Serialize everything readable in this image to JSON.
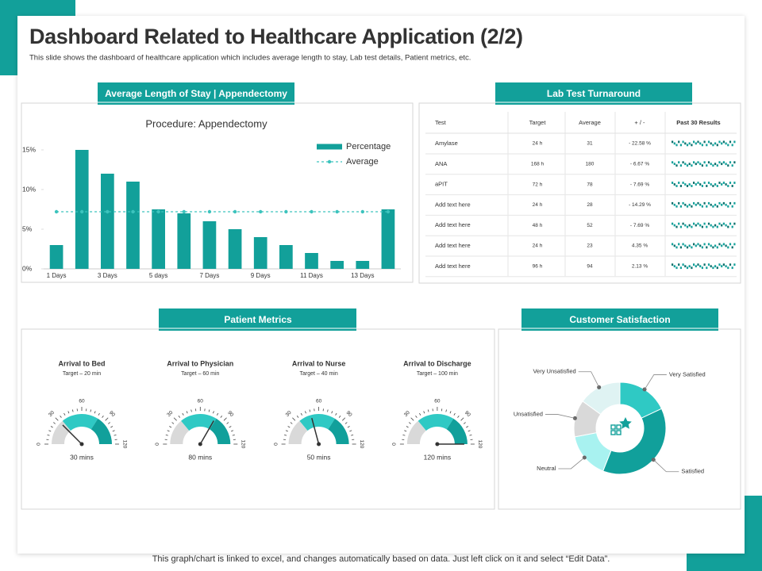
{
  "header": {
    "title": "Dashboard Related to Healthcare Application (2/2)",
    "subtitle": "This slide shows the dashboard of healthcare application which includes average length to stay, Lab test details, Patient metrics, etc."
  },
  "banners": [
    "Average Length of Stay | Appendectomy",
    "Lab Test Turnaround",
    "Patient Metrics",
    "Customer Satisfaction"
  ],
  "chart_data": [
    {
      "type": "bar",
      "title": "Procedure: Appendectomy",
      "categories": [
        "1 Days",
        null,
        "3 Days",
        null,
        "5 days",
        null,
        "7 Days",
        null,
        "9 Days",
        null,
        "11 Days",
        null,
        "13 Days",
        null
      ],
      "series": [
        {
          "name": "Percentage",
          "type": "bar",
          "color": "#12a09a",
          "values": [
            3,
            15,
            12,
            11,
            7.5,
            7,
            6,
            5,
            4,
            3,
            2,
            1,
            1,
            7.5
          ]
        },
        {
          "name": "Average",
          "type": "line",
          "color": "#3cc3bd",
          "values": [
            7.2,
            7.2,
            7.2,
            7.2,
            7.2,
            7.2,
            7.2,
            7.2,
            7.2,
            7.2,
            7.2,
            7.2,
            7.2,
            7.2
          ]
        }
      ],
      "ylim": [
        0,
        16
      ],
      "yticks": [
        {
          "value": 0,
          "label": "0%"
        },
        {
          "value": 5,
          "label": "5%"
        },
        {
          "value": 10,
          "label": "10%"
        },
        {
          "value": 15,
          "label": "15%"
        }
      ],
      "legend": "upper right"
    },
    {
      "type": "pie",
      "donut": true,
      "categories": [
        "Very Satisfied",
        "Satisfied",
        "Neutral",
        "Unsatisfied",
        "Very Unsatisfied"
      ],
      "values": [
        18,
        38,
        16,
        13,
        15
      ],
      "colors": [
        "#2fc9c4",
        "#11a09b",
        "#a8f2f0",
        "#d9d9d9",
        "#dff3f3"
      ]
    }
  ],
  "lab_table": {
    "header": [
      "Test",
      "Target",
      "Average",
      "+ / -",
      "Past 30 Results"
    ],
    "rows": [
      [
        "Amylase",
        "24 h",
        "31",
        "- 22.58 %"
      ],
      [
        "ANA",
        "168 h",
        "180",
        "- 6.67 %"
      ],
      [
        "aPIT",
        "72 h",
        "78",
        "- 7.69 %"
      ],
      [
        "Add text here",
        "24 h",
        "28",
        "- 14.29 %"
      ],
      [
        "Add text here",
        "48 h",
        "52",
        "- 7.69 %"
      ],
      [
        "Add text here",
        "24 h",
        "23",
        "4.35 %"
      ],
      [
        "Add text here",
        "96 h",
        "94",
        "2.13 %"
      ]
    ]
  },
  "patient_metrics": {
    "range": [
      0,
      120
    ],
    "ticks": [
      0,
      30,
      60,
      90,
      120
    ],
    "items": [
      {
        "title": "Arrival to Bed",
        "target": "Target – 20 min",
        "value": 30,
        "value_label": "30 mins"
      },
      {
        "title": "Arrival to Physician",
        "target": "Target – 60 min",
        "value": 80,
        "value_label": "80 mins"
      },
      {
        "title": "Arrival to Nurse",
        "target": "Target – 40 min",
        "value": 50,
        "value_label": "50 mins"
      },
      {
        "title": "Arrival to Discharge",
        "target": "Target – 100 min",
        "value": 120,
        "value_label": "120 mins"
      }
    ]
  },
  "footer": "This graph/chart is linked to excel, and changes automatically based on data. Just left click on it and select “Edit Data”."
}
